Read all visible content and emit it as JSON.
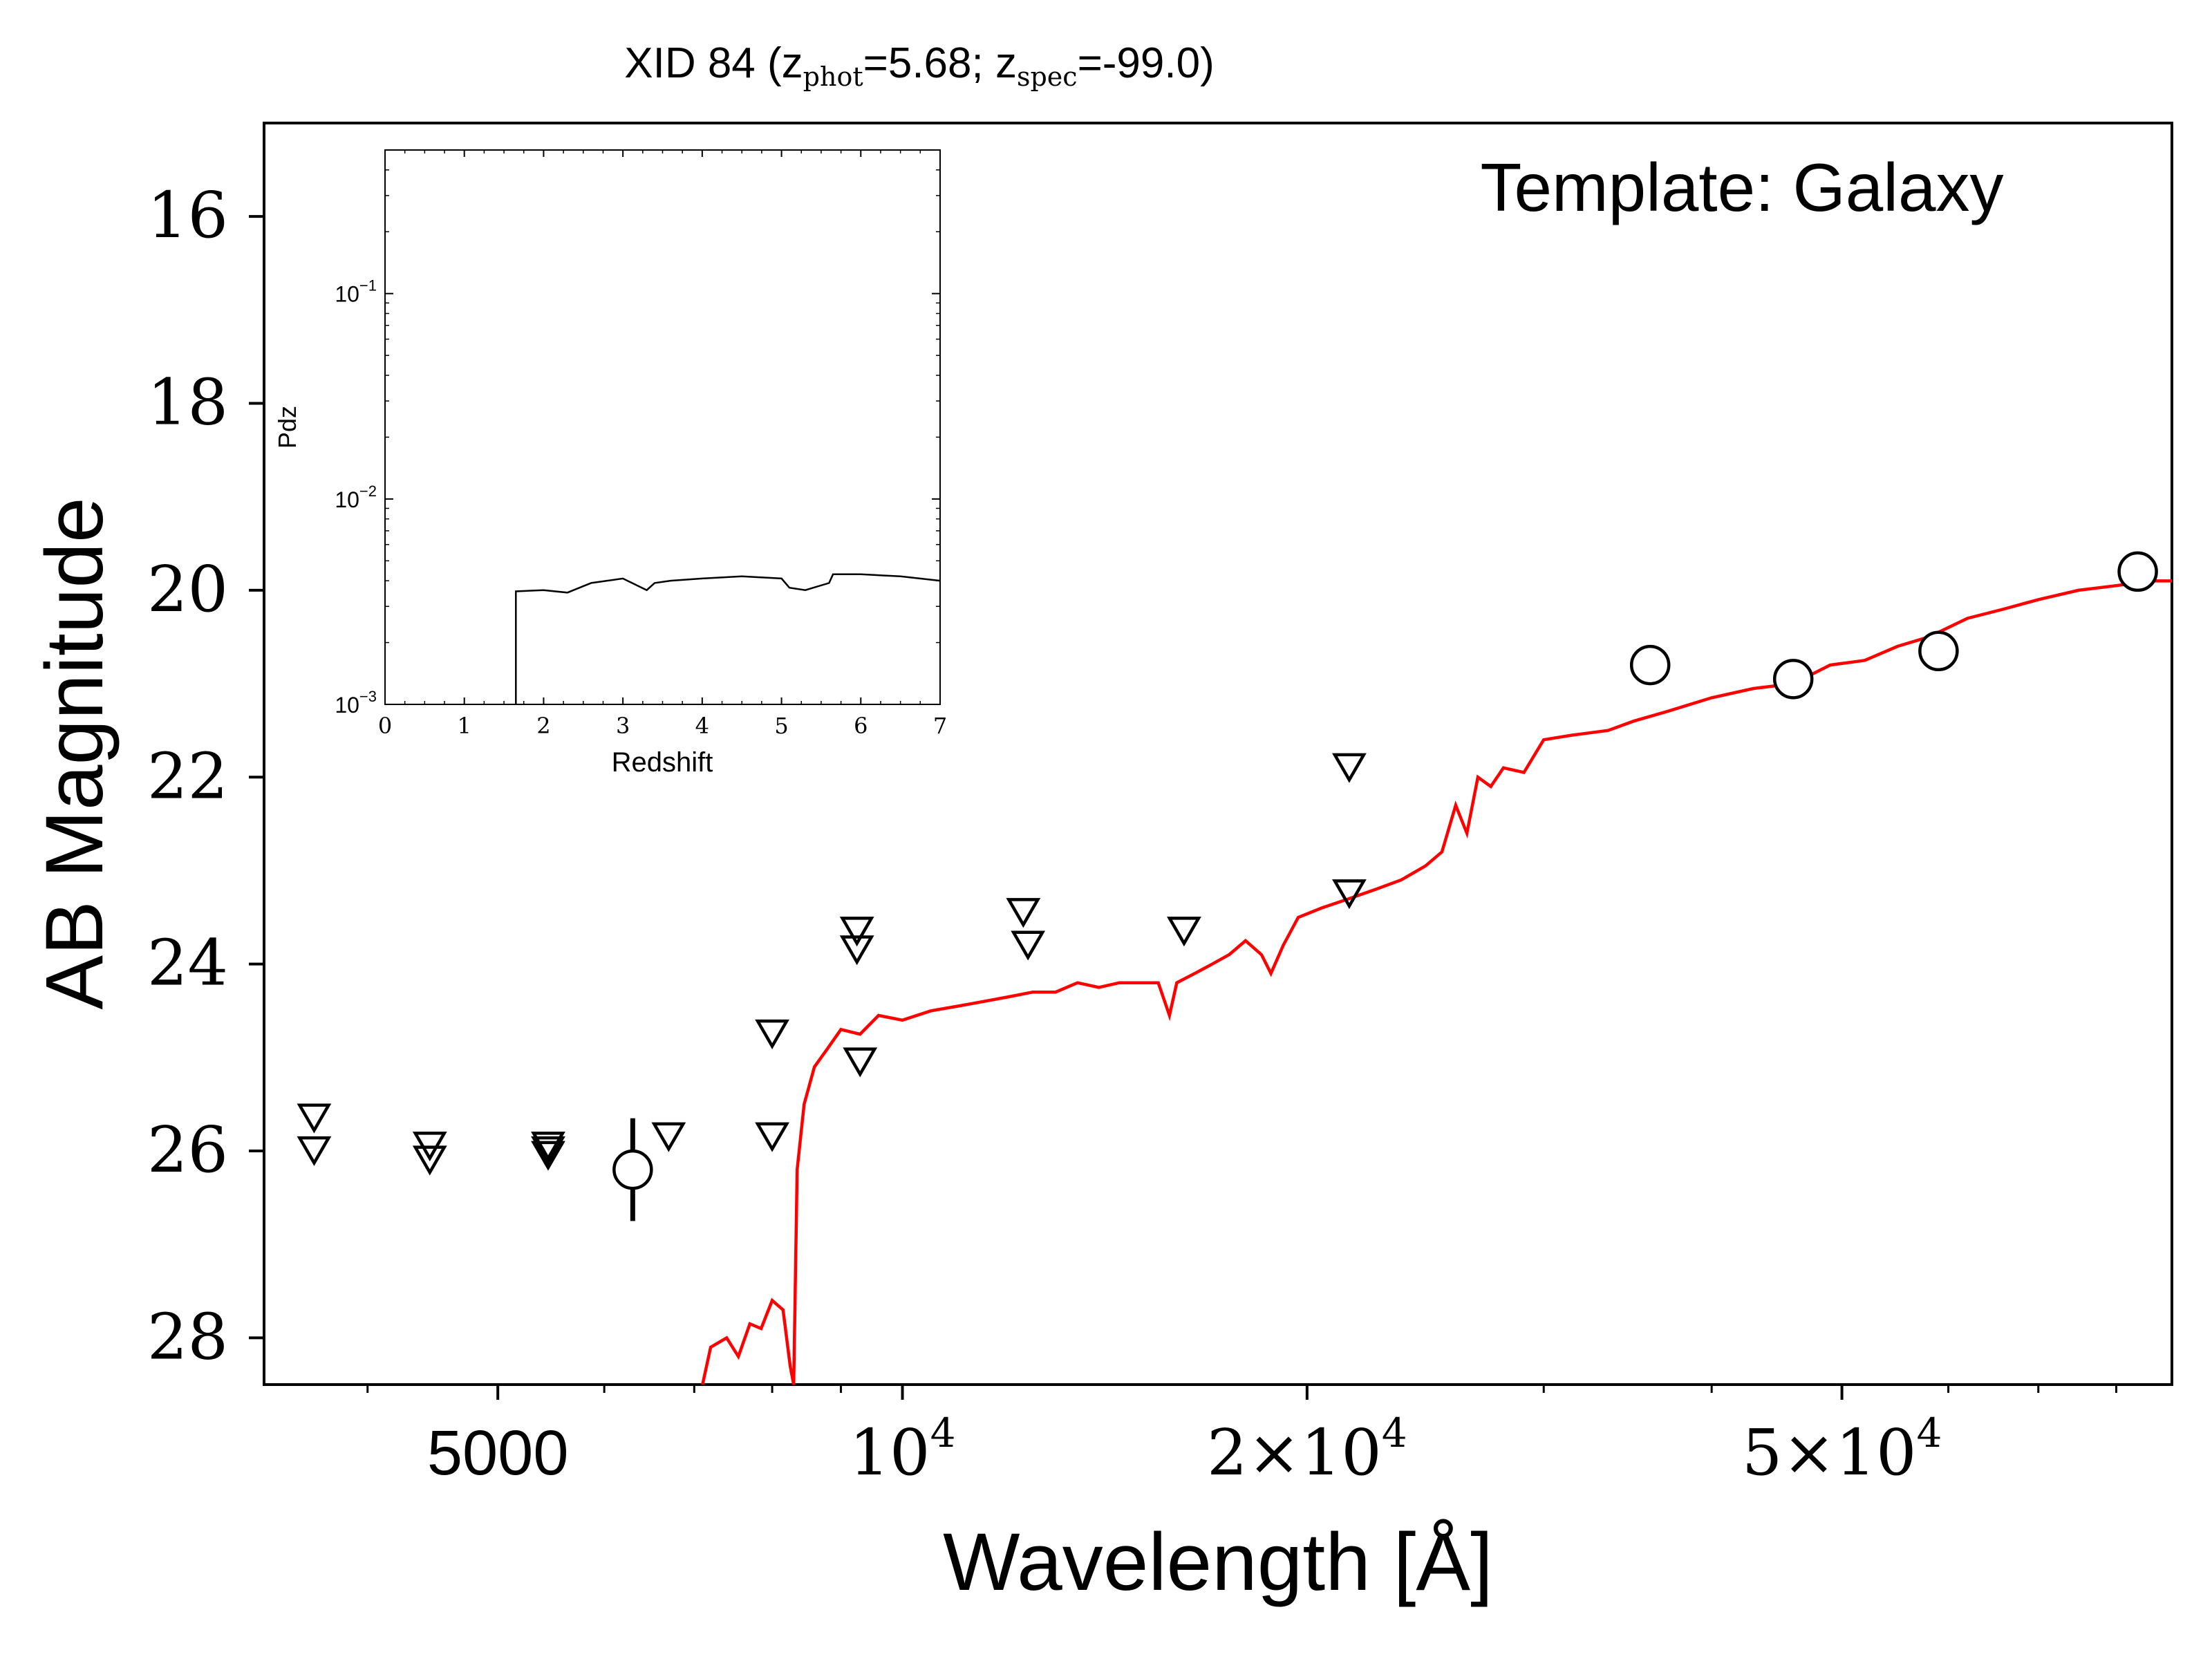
{
  "chart_data": [
    {
      "type": "scatter",
      "title": "XID 84 (z",
      "title_parts": {
        "prefix": "XID 84 (z",
        "sub1": "phot",
        "mid": "=5.68; z",
        "sub2": "spec",
        "suffix": "=-99.0)"
      },
      "xlabel": "Wavelength [Å]",
      "ylabel": "AB Magnitude",
      "annotation": "Template: Galaxy",
      "x_scale": "log",
      "y_inverted": true,
      "xlim": [
        3350,
        88000
      ],
      "ylim": [
        28.5,
        15.0
      ],
      "x_ticks": [
        {
          "value": 5000,
          "label": "5000"
        },
        {
          "value": 10000,
          "label": "10",
          "exp": "4"
        },
        {
          "value": 20000,
          "label": "2×10",
          "exp": "4"
        },
        {
          "value": 50000,
          "label": "5×10",
          "exp": "4"
        }
      ],
      "y_ticks": [
        16,
        18,
        20,
        22,
        24,
        26,
        28
      ],
      "grid": false,
      "detections": [
        {
          "x": 6300,
          "y": 26.2,
          "yerr": 0.55
        },
        {
          "x": 36000,
          "y": 20.8
        },
        {
          "x": 46000,
          "y": 20.95
        },
        {
          "x": 59000,
          "y": 20.65
        },
        {
          "x": 83000,
          "y": 19.8
        }
      ],
      "upper_limits": [
        {
          "x": 3650,
          "y": 25.6
        },
        {
          "x": 3650,
          "y": 25.95
        },
        {
          "x": 4450,
          "y": 25.9
        },
        {
          "x": 4450,
          "y": 26.05
        },
        {
          "x": 5450,
          "y": 25.9
        },
        {
          "x": 5450,
          "y": 25.95
        },
        {
          "x": 5450,
          "y": 26.0
        },
        {
          "x": 6700,
          "y": 25.8
        },
        {
          "x": 8000,
          "y": 24.7
        },
        {
          "x": 8000,
          "y": 25.8
        },
        {
          "x": 9250,
          "y": 23.6
        },
        {
          "x": 9250,
          "y": 23.8
        },
        {
          "x": 9300,
          "y": 25.0
        },
        {
          "x": 12300,
          "y": 23.4
        },
        {
          "x": 12400,
          "y": 23.75
        },
        {
          "x": 16200,
          "y": 23.6
        },
        {
          "x": 21500,
          "y": 21.85
        },
        {
          "x": 21500,
          "y": 23.2
        }
      ],
      "model_color": "#ff0000",
      "model": [
        [
          7100,
          28.5
        ],
        [
          7200,
          28.1
        ],
        [
          7400,
          28.0
        ],
        [
          7550,
          28.2
        ],
        [
          7700,
          27.85
        ],
        [
          7850,
          27.9
        ],
        [
          8000,
          27.6
        ],
        [
          8150,
          27.7
        ],
        [
          8250,
          28.3
        ],
        [
          8300,
          28.5
        ],
        [
          8350,
          26.2
        ],
        [
          8450,
          25.5
        ],
        [
          8600,
          25.1
        ],
        [
          8800,
          24.9
        ],
        [
          9000,
          24.7
        ],
        [
          9300,
          24.75
        ],
        [
          9600,
          24.55
        ],
        [
          10000,
          24.6
        ],
        [
          10500,
          24.5
        ],
        [
          11000,
          24.45
        ],
        [
          11500,
          24.4
        ],
        [
          12000,
          24.35
        ],
        [
          12500,
          24.3
        ],
        [
          13000,
          24.3
        ],
        [
          13500,
          24.2
        ],
        [
          14000,
          24.25
        ],
        [
          14500,
          24.2
        ],
        [
          15000,
          24.2
        ],
        [
          15500,
          24.2
        ],
        [
          15800,
          24.55
        ],
        [
          16000,
          24.2
        ],
        [
          16500,
          24.1
        ],
        [
          17000,
          24.0
        ],
        [
          17500,
          23.9
        ],
        [
          18000,
          23.75
        ],
        [
          18500,
          23.9
        ],
        [
          18800,
          24.1
        ],
        [
          19200,
          23.8
        ],
        [
          19700,
          23.5
        ],
        [
          20500,
          23.4
        ],
        [
          21500,
          23.3
        ],
        [
          22500,
          23.2
        ],
        [
          23500,
          23.1
        ],
        [
          24500,
          22.95
        ],
        [
          25200,
          22.8
        ],
        [
          25800,
          22.3
        ],
        [
          26300,
          22.6
        ],
        [
          26800,
          22.0
        ],
        [
          27400,
          22.1
        ],
        [
          28000,
          21.9
        ],
        [
          29000,
          21.95
        ],
        [
          30000,
          21.6
        ],
        [
          31500,
          21.55
        ],
        [
          33500,
          21.5
        ],
        [
          35000,
          21.4
        ],
        [
          37000,
          21.3
        ],
        [
          40000,
          21.15
        ],
        [
          43000,
          21.05
        ],
        [
          46000,
          21.0
        ],
        [
          49000,
          20.8
        ],
        [
          52000,
          20.75
        ],
        [
          55000,
          20.6
        ],
        [
          58000,
          20.5
        ],
        [
          62000,
          20.3
        ],
        [
          66000,
          20.2
        ],
        [
          70000,
          20.1
        ],
        [
          75000,
          20.0
        ],
        [
          80000,
          19.95
        ],
        [
          85000,
          19.9
        ],
        [
          88000,
          19.9
        ]
      ]
    },
    {
      "type": "line",
      "xlabel": "Redshift",
      "ylabel": "Pdz",
      "y_scale": "log",
      "xlim": [
        0,
        7
      ],
      "ylim": [
        0.001,
        0.5
      ],
      "x_ticks": [
        "0",
        "1",
        "2",
        "3",
        "4",
        "5",
        "6",
        "7"
      ],
      "y_ticks": [
        {
          "value": 0.1,
          "base": "10",
          "exp": "−1"
        },
        {
          "value": 0.01,
          "base": "10",
          "exp": "−2"
        },
        {
          "value": 0.001,
          "base": "10",
          "exp": "−3"
        }
      ],
      "x": [
        1.65,
        1.65,
        2.0,
        2.3,
        2.6,
        3.0,
        3.3,
        3.4,
        3.6,
        4.0,
        4.5,
        5.0,
        5.1,
        5.3,
        5.6,
        5.65,
        6.0,
        6.5,
        7.0
      ],
      "y": [
        0.001,
        0.00355,
        0.0036,
        0.0035,
        0.0039,
        0.0041,
        0.0036,
        0.0039,
        0.004,
        0.0041,
        0.0042,
        0.0041,
        0.0037,
        0.0036,
        0.0039,
        0.0043,
        0.0043,
        0.0042,
        0.004
      ]
    }
  ]
}
